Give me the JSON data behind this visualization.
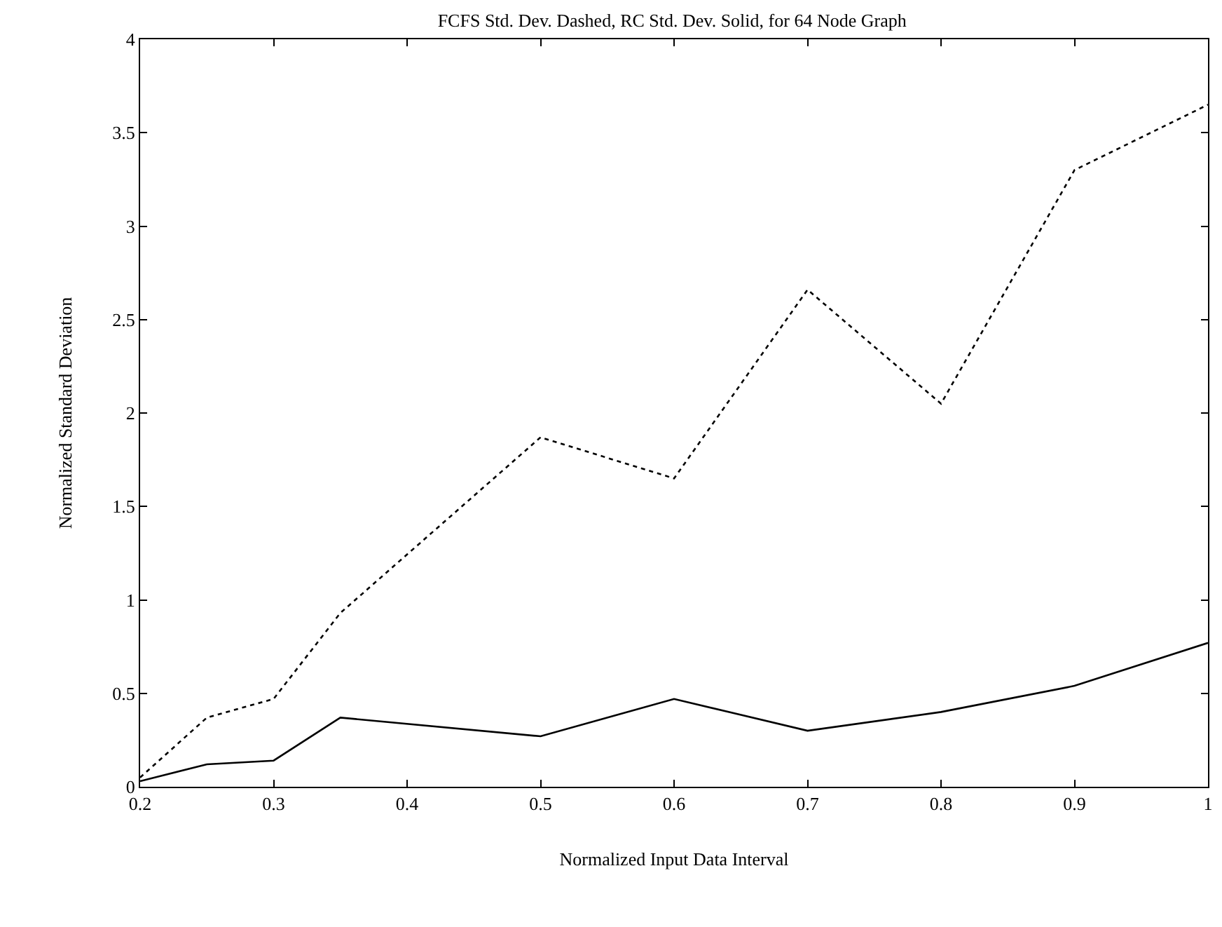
{
  "chart_data": {
    "type": "line",
    "title": "FCFS Std. Dev. Dashed, RC Std. Dev. Solid, for 64 Node Graph",
    "xlabel": "Normalized Input Data Interval",
    "ylabel": "Normalized Standard Deviation",
    "x": [
      0.2,
      0.25,
      0.3,
      0.35,
      0.5,
      0.6,
      0.7,
      0.8,
      0.9,
      1
    ],
    "series": [
      {
        "color": "#000000",
        "line_style": "dotted",
        "values": [
          0.05,
          0.37,
          0.47,
          0.93,
          1.87,
          1.65,
          2.66,
          2.05,
          3.3,
          3.65
        ]
      },
      {
        "color": "#000000",
        "line_style": "solid",
        "x": [
          0.2,
          0.25,
          0.3,
          0.35,
          0.5,
          0.6,
          0.7,
          0.8,
          0.9,
          1
        ],
        "values": [
          0.03,
          0.12,
          0.14,
          0.37,
          0.27,
          0.47,
          0.3,
          0.4,
          0.54,
          0.77
        ]
      }
    ],
    "xlim": [
      0.2,
      1
    ],
    "xticks": [
      0.2,
      0.3,
      0.4,
      0.5,
      0.6,
      0.7,
      0.8,
      0.9,
      {
        "value": 1,
        "label": "1"
      }
    ],
    "ylim": [
      0,
      4
    ],
    "yticks": [
      0,
      0.5,
      1,
      1.5,
      2,
      2.5,
      3,
      3.5,
      4
    ],
    "marker": "none"
  }
}
